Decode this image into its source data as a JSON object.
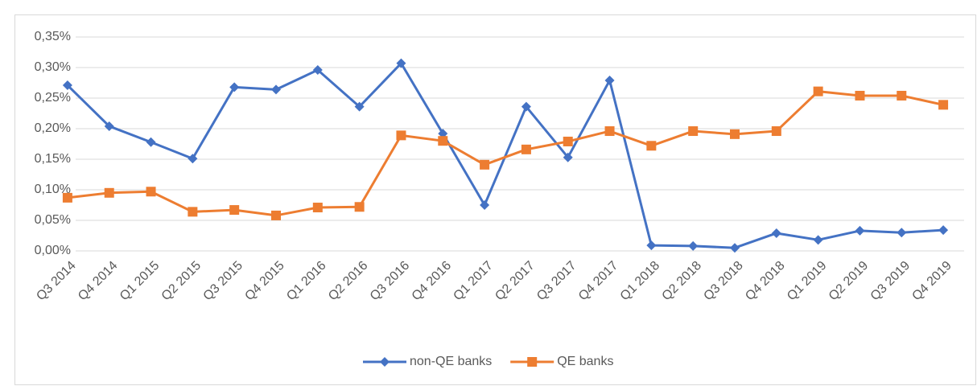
{
  "chart_data": {
    "type": "line",
    "categories": [
      "Q3 2014",
      "Q4 2014",
      "Q1 2015",
      "Q2 2015",
      "Q3 2015",
      "Q4 2015",
      "Q1 2016",
      "Q2 2016",
      "Q3 2016",
      "Q4 2016",
      "Q1 2017",
      "Q2 2017",
      "Q3 2017",
      "Q4 2017",
      "Q1 2018",
      "Q2 2018",
      "Q3 2018",
      "Q4 2018",
      "Q1 2019",
      "Q2 2019",
      "Q3 2019",
      "Q4 2019"
    ],
    "series": [
      {
        "name": "non-QE banks",
        "color": "#4472c4",
        "marker": "diamond",
        "values": [
          0.271,
          0.204,
          0.178,
          0.151,
          0.268,
          0.264,
          0.296,
          0.236,
          0.307,
          0.192,
          0.075,
          0.236,
          0.153,
          0.279,
          0.009,
          0.008,
          0.005,
          0.029,
          0.018,
          0.033,
          0.03,
          0.034
        ]
      },
      {
        "name": "QE banks",
        "color": "#ed7d31",
        "marker": "square",
        "values": [
          0.087,
          0.095,
          0.097,
          0.064,
          0.067,
          0.058,
          0.071,
          0.072,
          0.189,
          0.18,
          0.141,
          0.166,
          0.179,
          0.196,
          0.172,
          0.196,
          0.191,
          0.196,
          0.261,
          0.254,
          0.254,
          0.239
        ]
      }
    ],
    "ylim": [
      0,
      0.35
    ],
    "yticks": [
      {
        "value": 0,
        "label": "0,00%"
      },
      {
        "value": 0.05,
        "label": "0,05%"
      },
      {
        "value": 0.1,
        "label": "0,10%"
      },
      {
        "value": 0.15,
        "label": "0,15%"
      },
      {
        "value": 0.2,
        "label": "0,20%"
      },
      {
        "value": 0.25,
        "label": "0,25%"
      },
      {
        "value": 0.3,
        "label": "0,30%"
      },
      {
        "value": 0.35,
        "label": "0,35%"
      }
    ],
    "grid": true,
    "legend": "bottom"
  }
}
